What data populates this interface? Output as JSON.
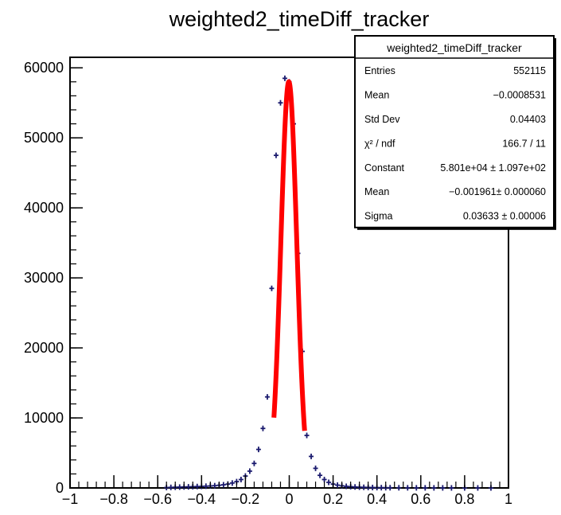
{
  "chart_data": {
    "type": "scatter",
    "title": "weighted2_timeDiff_tracker",
    "xlabel": "",
    "ylabel": "",
    "xlim": [
      -1,
      1
    ],
    "ylim": [
      0,
      61500
    ],
    "grid": false,
    "x_ticks": [
      {
        "value": -1,
        "label": "−1"
      },
      {
        "value": -0.8,
        "label": "−0.8"
      },
      {
        "value": -0.6,
        "label": "−0.6"
      },
      {
        "value": -0.4,
        "label": "−0.4"
      },
      {
        "value": -0.2,
        "label": "−0.2"
      },
      {
        "value": 0,
        "label": "0"
      },
      {
        "value": 0.2,
        "label": "0.2"
      },
      {
        "value": 0.4,
        "label": "0.4"
      },
      {
        "value": 0.6,
        "label": "0.6"
      },
      {
        "value": 0.8,
        "label": "0.8"
      },
      {
        "value": 1,
        "label": "1"
      }
    ],
    "y_ticks": [
      {
        "value": 0,
        "label": "0"
      },
      {
        "value": 10000,
        "label": "10000"
      },
      {
        "value": 20000,
        "label": "20000"
      },
      {
        "value": 30000,
        "label": "30000"
      },
      {
        "value": 40000,
        "label": "40000"
      },
      {
        "value": 50000,
        "label": "50000"
      },
      {
        "value": 60000,
        "label": "60000"
      }
    ],
    "series": [
      {
        "kind": "histogram-points",
        "color": "#1a1a6e",
        "x": [
          -0.56,
          -0.54,
          -0.52,
          -0.5,
          -0.48,
          -0.46,
          -0.44,
          -0.42,
          -0.4,
          -0.38,
          -0.36,
          -0.34,
          -0.32,
          -0.3,
          -0.28,
          -0.26,
          -0.24,
          -0.22,
          -0.2,
          -0.18,
          -0.16,
          -0.14,
          -0.12,
          -0.1,
          -0.08,
          -0.06,
          -0.04,
          -0.02,
          0,
          0.02,
          0.04,
          0.06,
          0.08,
          0.1,
          0.12,
          0.14,
          0.16,
          0.18,
          0.2,
          0.22,
          0.24,
          0.26,
          0.28,
          0.3,
          0.32,
          0.34,
          0.36,
          0.38,
          0.4,
          0.42,
          0.44,
          0.46,
          0.5,
          0.54,
          0.58,
          0.62,
          0.66,
          0.7,
          0.74,
          0.8,
          0.86,
          0.92
        ],
        "y": [
          60,
          80,
          100,
          120,
          140,
          160,
          180,
          200,
          220,
          250,
          280,
          320,
          380,
          450,
          550,
          700,
          900,
          1200,
          1700,
          2400,
          3500,
          5500,
          8500,
          13000,
          28500,
          47500,
          55000,
          58500,
          58000,
          52000,
          33500,
          19500,
          7500,
          4500,
          2800,
          1800,
          1200,
          800,
          550,
          400,
          300,
          230,
          180,
          140,
          110,
          90,
          75,
          60,
          50,
          40,
          35,
          30,
          25,
          20,
          15,
          12,
          10,
          8,
          6,
          5,
          4,
          3
        ]
      },
      {
        "kind": "gaussian-fit",
        "color": "#ff0000",
        "range": [
          -0.07,
          0.07
        ]
      }
    ],
    "stats_box": {
      "title": "weighted2_timeDiff_tracker",
      "rows": [
        {
          "name": "Entries",
          "value": "552115"
        },
        {
          "name": "Mean",
          "value": "−0.0008531"
        },
        {
          "name": "Std Dev",
          "value": "0.04403"
        },
        {
          "name": "χ² / ndf",
          "value": "166.7 / 11"
        },
        {
          "name": "Constant",
          "value": "5.801e+04 ± 1.097e+02"
        },
        {
          "name": "Mean",
          "value": "−0.001961± 0.000060"
        },
        {
          "name": "Sigma",
          "value": "0.03633 ± 0.00006"
        }
      ]
    },
    "fit": {
      "constant": 58010,
      "mean": -0.001961,
      "sigma": 0.03633
    }
  }
}
